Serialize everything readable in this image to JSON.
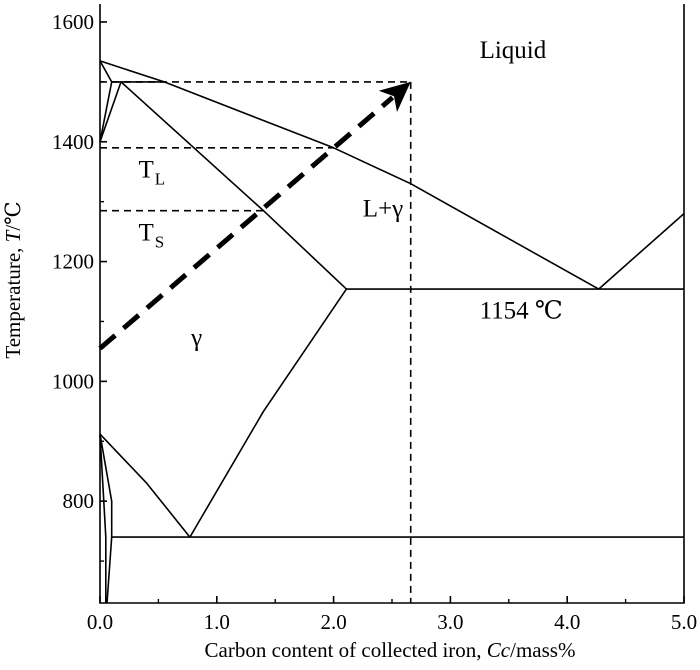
{
  "chart_data": {
    "type": "phase-diagram",
    "title": "",
    "xlabel": "Carbon content of collected iron, Cc/mass%",
    "xlabel_parts": {
      "prefix": "Carbon content of collected iron, ",
      "symbol": "Cc",
      "suffix": "/mass%"
    },
    "ylabel": "Temperature, T/°C",
    "ylabel_parts": {
      "prefix": "Temperature, ",
      "symbol": "T",
      "suffix": "/℃"
    },
    "xlim": [
      0,
      5.0
    ],
    "ylim": [
      630,
      1630
    ],
    "x_ticks": [
      {
        "value": 0.0,
        "label": "0.0"
      },
      {
        "value": 1.0,
        "label": "1.0"
      },
      {
        "value": 2.0,
        "label": "2.0"
      },
      {
        "value": 3.0,
        "label": "3.0"
      },
      {
        "value": 4.0,
        "label": "4.0"
      },
      {
        "value": 5.0,
        "label": "5.0"
      }
    ],
    "y_ticks": [
      {
        "value": 800,
        "label": "800"
      },
      {
        "value": 1000,
        "label": "1000"
      },
      {
        "value": 1200,
        "label": "1200"
      },
      {
        "value": 1400,
        "label": "1400"
      },
      {
        "value": 1600,
        "label": "1600"
      }
    ],
    "grid": false,
    "curves": [
      {
        "name": "liquidus-delta",
        "points": [
          [
            0.0,
            1535
          ],
          [
            0.55,
            1500
          ]
        ]
      },
      {
        "name": "liquidus-gamma",
        "points": [
          [
            0.55,
            1500
          ],
          [
            2.0,
            1390
          ],
          [
            2.66,
            1330
          ],
          [
            4.27,
            1154
          ]
        ]
      },
      {
        "name": "liquidus-graphite",
        "points": [
          [
            4.27,
            1154
          ],
          [
            5.0,
            1280
          ]
        ]
      },
      {
        "name": "solidus-gamma",
        "points": [
          [
            0.18,
            1500
          ],
          [
            1.4,
            1285
          ],
          [
            2.11,
            1154
          ]
        ]
      },
      {
        "name": "eutectic-line",
        "points": [
          [
            2.11,
            1154
          ],
          [
            5.0,
            1154
          ]
        ]
      },
      {
        "name": "peritectic-line",
        "points": [
          [
            0.1,
            1500
          ],
          [
            0.55,
            1500
          ]
        ]
      },
      {
        "name": "delta-solidus",
        "points": [
          [
            0.0,
            1535
          ],
          [
            0.1,
            1500
          ]
        ]
      },
      {
        "name": "delta-to-gamma-upper",
        "points": [
          [
            0.0,
            1400
          ],
          [
            0.18,
            1500
          ]
        ]
      },
      {
        "name": "delta-to-gamma-lower",
        "points": [
          [
            0.0,
            1400
          ],
          [
            0.1,
            1500
          ]
        ]
      },
      {
        "name": "acm-line",
        "points": [
          [
            2.11,
            1154
          ],
          [
            1.4,
            950
          ],
          [
            0.77,
            740
          ]
        ]
      },
      {
        "name": "a3-line",
        "points": [
          [
            0.0,
            912
          ],
          [
            0.4,
            830
          ],
          [
            0.77,
            740
          ]
        ]
      },
      {
        "name": "eutectoid-line",
        "points": [
          [
            0.1,
            740
          ],
          [
            5.0,
            740
          ]
        ]
      },
      {
        "name": "ferrite-boundary",
        "points": [
          [
            0.0,
            912
          ],
          [
            0.1,
            800
          ],
          [
            0.1,
            740
          ],
          [
            0.06,
            630
          ]
        ]
      },
      {
        "name": "ferrite-left",
        "points": [
          [
            0.0,
            912
          ],
          [
            0.05,
            740
          ],
          [
            0.05,
            630
          ]
        ]
      }
    ],
    "guides": [
      {
        "name": "tl-guide",
        "points": [
          [
            0.0,
            1390
          ],
          [
            2.0,
            1390
          ]
        ]
      },
      {
        "name": "ts-guide",
        "points": [
          [
            0.0,
            1285
          ],
          [
            1.4,
            1285
          ]
        ]
      },
      {
        "name": "top-guide",
        "points": [
          [
            0.0,
            1500
          ],
          [
            2.66,
            1500
          ]
        ]
      },
      {
        "name": "carbon-guide",
        "points": [
          [
            2.66,
            1500
          ],
          [
            2.66,
            630
          ]
        ]
      }
    ],
    "path_arrow": {
      "name": "heating-carburizing-path",
      "from": [
        0.0,
        1055
      ],
      "to": [
        2.66,
        1500
      ]
    },
    "annotations": [
      {
        "name": "liquid-label",
        "text": "Liquid",
        "x": 3.25,
        "y": 1540
      },
      {
        "name": "l-plus-gamma-label",
        "text": "L+γ",
        "x": 2.25,
        "y": 1275
      },
      {
        "name": "gamma-label",
        "text": "γ",
        "x": 0.78,
        "y": 1060
      },
      {
        "name": "eutectic-temp-label",
        "text": "1154 ℃",
        "x": 3.25,
        "y": 1105
      },
      {
        "name": "tl-label",
        "text": "T",
        "sub": "L",
        "x": 0.33,
        "y": 1340
      },
      {
        "name": "ts-label",
        "text": "T",
        "sub": "S",
        "x": 0.33,
        "y": 1235
      }
    ]
  }
}
